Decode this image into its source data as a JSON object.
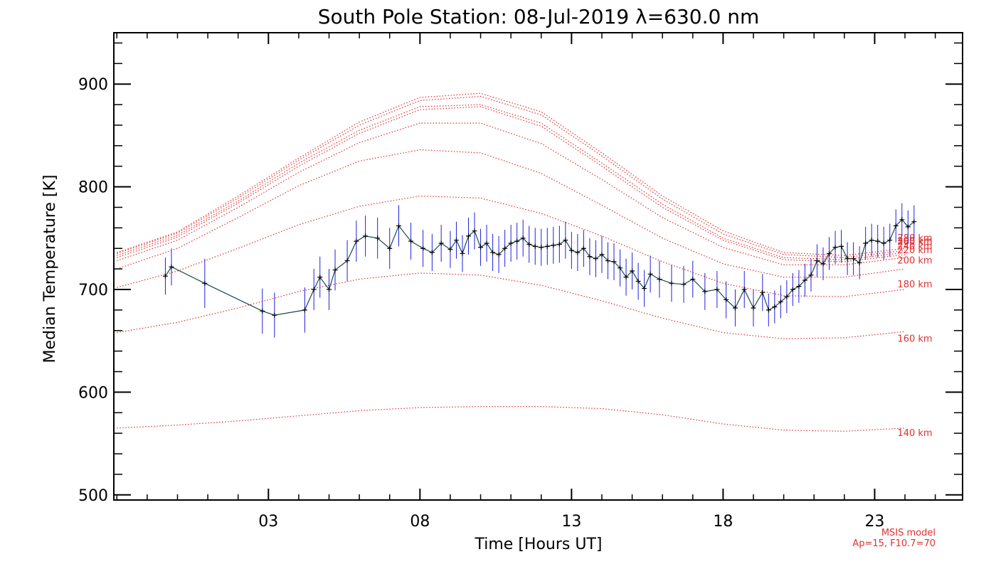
{
  "chart_data": {
    "type": "line",
    "title": "South Pole Station: 08-Jul-2019 λ=630.0 nm",
    "xlabel": "Time [Hours UT]",
    "ylabel": "Median Temperature [K]",
    "xlim": [
      -2.1,
      25.9
    ],
    "ylim": [
      495,
      950
    ],
    "x_ticks": [
      3,
      8,
      13,
      18,
      23
    ],
    "x_tick_labels": [
      "03",
      "08",
      "13",
      "18",
      "23"
    ],
    "y_ticks": [
      500,
      600,
      700,
      800,
      900
    ],
    "y_tick_labels": [
      "500",
      "600",
      "700",
      "800",
      "900"
    ],
    "grid": false,
    "colors": {
      "model": "#e03030",
      "errorbar": "#2020e0",
      "data": "#000000",
      "line": "#1e4650"
    },
    "model_note": [
      "MSIS model",
      "Ap=15, F10.7=70"
    ],
    "model_curves": [
      {
        "label": "140 km",
        "label_value": 560,
        "x": [
          -2,
          0,
          2,
          4,
          6,
          8,
          10,
          12,
          14,
          16,
          18,
          20,
          22,
          24,
          26
        ],
        "y": [
          565,
          568,
          572,
          577,
          582,
          585,
          586,
          586,
          584,
          578,
          569,
          563,
          562,
          565,
          568
        ]
      },
      {
        "label": "160 km",
        "label_value": 652,
        "x": [
          -2,
          0,
          2,
          4,
          6,
          8,
          10,
          12,
          14,
          16,
          18,
          20,
          22,
          24,
          26
        ],
        "y": [
          658,
          668,
          682,
          698,
          710,
          716,
          714,
          704,
          689,
          672,
          658,
          652,
          653,
          659,
          667
        ]
      },
      {
        "label": "180 km",
        "label_value": 705,
        "x": [
          -2,
          0,
          2,
          4,
          6,
          8,
          10,
          12,
          14,
          16,
          18,
          20,
          22,
          24,
          26
        ],
        "y": [
          702,
          718,
          740,
          763,
          781,
          791,
          789,
          774,
          752,
          727,
          706,
          694,
          693,
          700,
          711
        ]
      },
      {
        "label": "200 km",
        "label_value": 728,
        "x": [
          -2,
          0,
          2,
          4,
          6,
          8,
          10,
          12,
          14,
          16,
          18,
          20,
          22,
          24,
          26
        ],
        "y": [
          720,
          740,
          770,
          801,
          825,
          836,
          833,
          813,
          782,
          750,
          725,
          712,
          712,
          720,
          730
        ]
      },
      {
        "label": "220 km",
        "label_value": 738,
        "x": [
          -2,
          0,
          2,
          4,
          6,
          8,
          10,
          12,
          14,
          16,
          18,
          20,
          22,
          24,
          26
        ],
        "y": [
          728,
          748,
          780,
          814,
          843,
          862,
          862,
          842,
          807,
          770,
          741,
          724,
          724,
          731,
          741
        ]
      },
      {
        "label": "240 km",
        "label_value": 742,
        "x": [
          -2,
          0,
          2,
          4,
          6,
          8,
          10,
          12,
          14,
          16,
          18,
          20,
          22,
          24,
          26
        ],
        "y": [
          731,
          751,
          784,
          820,
          852,
          875,
          878,
          859,
          820,
          780,
          748,
          729,
          727,
          734,
          745
        ]
      },
      {
        "label": "260 km",
        "label_value": 746,
        "x": [
          -2,
          0,
          2,
          4,
          6,
          8,
          10,
          12,
          14,
          16,
          18,
          20,
          22,
          24,
          26
        ],
        "y": [
          733,
          753,
          786,
          823,
          855,
          878,
          880,
          862,
          823,
          783,
          750,
          731,
          729,
          736,
          747
        ]
      },
      {
        "label": "280 km",
        "label_value": 750,
        "x": [
          -2,
          0,
          2,
          4,
          6,
          8,
          10,
          12,
          14,
          16,
          18,
          20,
          22,
          24,
          26
        ],
        "y": [
          735,
          755,
          789,
          826,
          860,
          884,
          888,
          870,
          830,
          788,
          754,
          734,
          731,
          738,
          750
        ]
      },
      {
        "label": "300 km",
        "label_value": 747,
        "x": [
          -2,
          0,
          2,
          4,
          6,
          8,
          10,
          12,
          14,
          16,
          18,
          20,
          22,
          24,
          26
        ],
        "y": [
          736,
          756,
          791,
          828,
          863,
          887,
          891,
          873,
          833,
          791,
          757,
          736,
          733,
          740,
          752
        ]
      }
    ],
    "series": [
      {
        "name": "Median temperature",
        "x": [
          -0.4,
          -0.2,
          0.9,
          2.8,
          3.2,
          4.2,
          4.5,
          4.7,
          5.0,
          5.2,
          5.6,
          5.9,
          6.2,
          6.6,
          7.0,
          7.3,
          7.7,
          8.1,
          8.4,
          8.7,
          9.0,
          9.2,
          9.4,
          9.6,
          9.8,
          10.0,
          10.2,
          10.4,
          10.6,
          10.8,
          11.0,
          11.2,
          11.4,
          11.6,
          11.8,
          12.0,
          12.2,
          12.4,
          12.6,
          12.8,
          13.0,
          13.2,
          13.4,
          13.6,
          13.8,
          14.0,
          14.2,
          14.4,
          14.6,
          14.8,
          15.0,
          15.2,
          15.4,
          15.6,
          15.9,
          16.3,
          16.7,
          17.0,
          17.4,
          17.8,
          18.1,
          18.4,
          18.7,
          19.0,
          19.3,
          19.5,
          19.7,
          19.9,
          20.1,
          20.3,
          20.5,
          20.7,
          20.9,
          21.1,
          21.3,
          21.5,
          21.7,
          21.9,
          22.1,
          22.3,
          22.5,
          22.7,
          22.9,
          23.1,
          23.3,
          23.5,
          23.7,
          23.9,
          24.1,
          24.3
        ],
        "y": [
          713,
          722,
          706,
          679,
          675,
          680,
          700,
          712,
          700,
          719,
          728,
          747,
          752,
          750,
          740,
          762,
          747,
          740,
          736,
          745,
          739,
          748,
          735,
          752,
          757,
          741,
          745,
          736,
          734,
          740,
          745,
          747,
          750,
          744,
          742,
          741,
          742,
          743,
          744,
          748,
          738,
          736,
          740,
          732,
          730,
          734,
          728,
          727,
          721,
          712,
          718,
          708,
          701,
          715,
          710,
          706,
          705,
          710,
          698,
          700,
          690,
          682,
          700,
          682,
          697,
          680,
          683,
          688,
          693,
          700,
          703,
          709,
          714,
          728,
          725,
          735,
          741,
          742,
          730,
          730,
          726,
          745,
          748,
          747,
          745,
          748,
          762,
          768,
          761,
          766
        ],
        "err": [
          9,
          9,
          12,
          11,
          11,
          11,
          10,
          10,
          10,
          10,
          10,
          10,
          10,
          10,
          10,
          10,
          9,
          9,
          9,
          9,
          9,
          9,
          9,
          9,
          9,
          9,
          9,
          9,
          9,
          9,
          9,
          9,
          9,
          9,
          9,
          9,
          9,
          9,
          9,
          9,
          9,
          9,
          9,
          9,
          9,
          9,
          9,
          9,
          9,
          9,
          9,
          9,
          9,
          9,
          9,
          9,
          9,
          9,
          9,
          9,
          9,
          9,
          9,
          9,
          9,
          8,
          8,
          8,
          8,
          8,
          8,
          8,
          8,
          8,
          8,
          8,
          8,
          8,
          8,
          8,
          8,
          8,
          8,
          8,
          8,
          8,
          8,
          8,
          8,
          8
        ]
      }
    ]
  }
}
